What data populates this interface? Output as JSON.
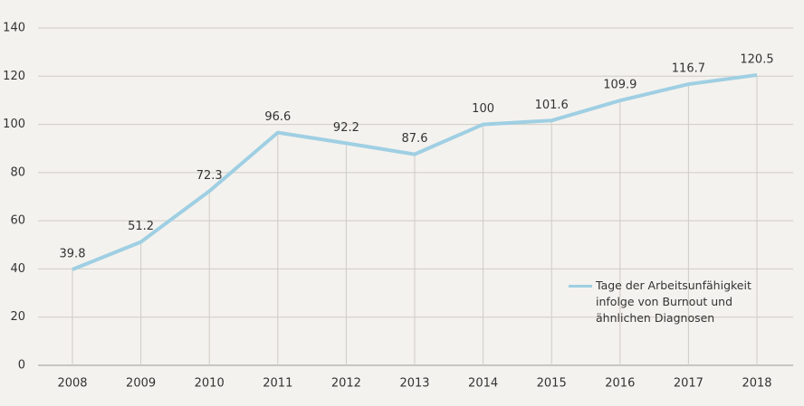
{
  "chart_data": {
    "type": "line",
    "categories": [
      "2008",
      "2009",
      "2010",
      "2011",
      "2012",
      "2013",
      "2014",
      "2015",
      "2016",
      "2017",
      "2018"
    ],
    "series": [
      {
        "name": "Tage der Arbeitsunfähigkeit infolge von Burnout und ähnlichen Diagnosen",
        "color": "#9fcfe3",
        "values": [
          39.8,
          51.2,
          72.3,
          96.6,
          92.2,
          87.6,
          100,
          101.6,
          109.9,
          116.7,
          120.5
        ]
      }
    ],
    "ylim": [
      0,
      140
    ],
    "yticks": [
      0,
      20,
      40,
      60,
      80,
      100,
      120,
      140
    ],
    "grid": true,
    "legend": "lower-right"
  }
}
